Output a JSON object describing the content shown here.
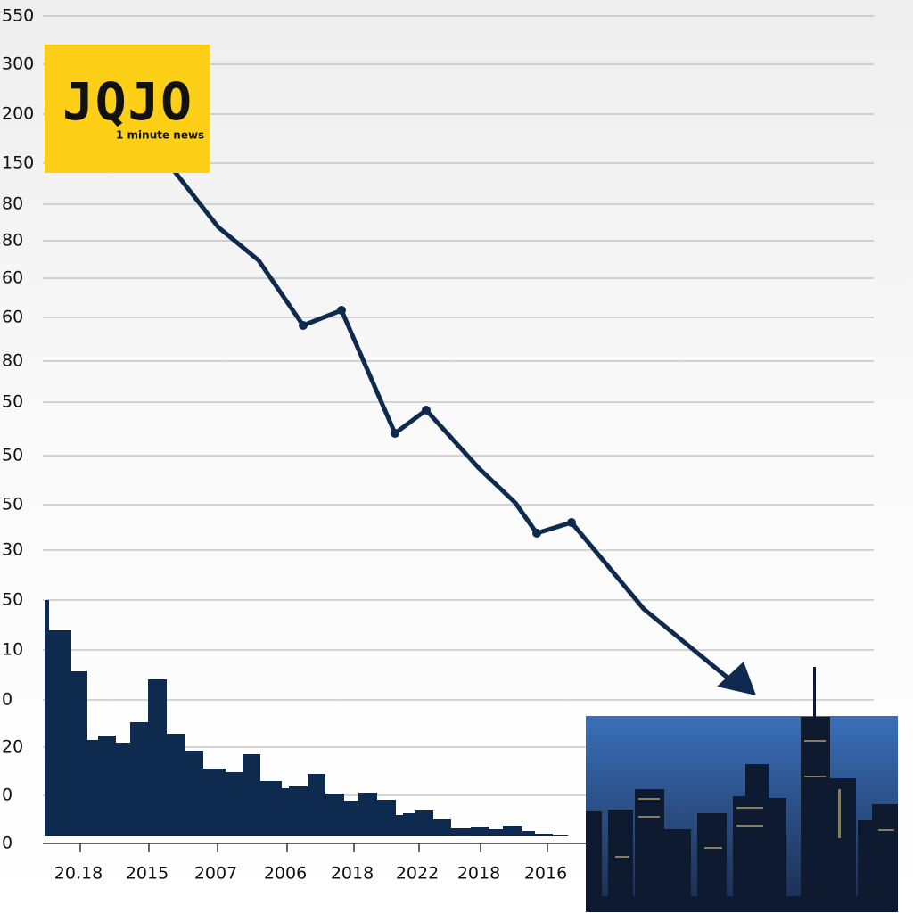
{
  "logo": {
    "title": "JQJO",
    "subtitle": "1 minute news"
  },
  "y_labels": [
    "550",
    "300",
    "200",
    "150",
    "80",
    "80",
    "60",
    "60",
    "80",
    "50",
    "50",
    "50",
    "30",
    "50",
    "10",
    "0",
    "20",
    "0",
    "0"
  ],
  "x_labels": [
    "20.18",
    "2015",
    "2007",
    "2006",
    "2018",
    "2022",
    "2018",
    "2016"
  ]
}
